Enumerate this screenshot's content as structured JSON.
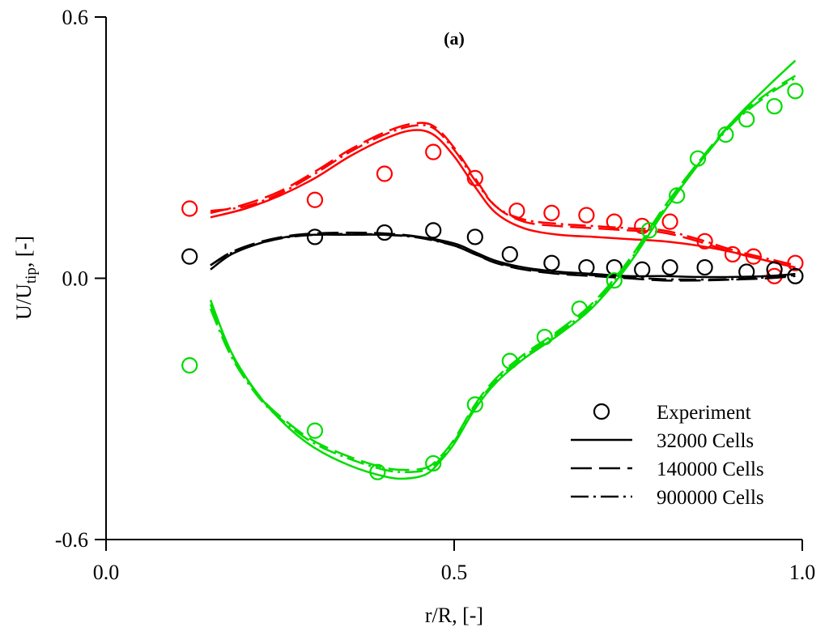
{
  "chart_data": {
    "type": "line",
    "panel_label": "(a)",
    "xlabel": "r/R, [-]",
    "ylabel_main": "U/U",
    "ylabel_sub": "tip",
    "ylabel_tail": ", [-]",
    "xlim": [
      0.0,
      1.0
    ],
    "ylim": [
      -0.6,
      0.6
    ],
    "x_ticks": [
      {
        "value": 0.0,
        "label": "0.0"
      },
      {
        "value": 0.5,
        "label": "0.5"
      },
      {
        "value": 1.0,
        "label": "1.0"
      }
    ],
    "y_ticks": [
      {
        "value": 0.6,
        "label": "0.6"
      },
      {
        "value": 0.0,
        "label": "0.0"
      },
      {
        "value": -0.6,
        "label": "-0.6"
      }
    ],
    "grid": false,
    "legend_position": "bottom-right",
    "legend": [
      {
        "label": "Experiment",
        "style": "circle"
      },
      {
        "label": "32000 Cells",
        "style": "solid"
      },
      {
        "label": "140000 Cells",
        "style": "dash"
      },
      {
        "label": "900000 Cells",
        "style": "dashdot"
      }
    ],
    "components": [
      {
        "color": "#ff0000",
        "experiment": [
          [
            0.12,
            0.16
          ],
          [
            0.3,
            0.18
          ],
          [
            0.4,
            0.24
          ],
          [
            0.47,
            0.29
          ],
          [
            0.53,
            0.23
          ],
          [
            0.59,
            0.155
          ],
          [
            0.64,
            0.15
          ],
          [
            0.69,
            0.145
          ],
          [
            0.73,
            0.13
          ],
          [
            0.77,
            0.12
          ],
          [
            0.81,
            0.13
          ],
          [
            0.86,
            0.085
          ],
          [
            0.9,
            0.055
          ],
          [
            0.93,
            0.05
          ],
          [
            0.96,
            0.005
          ],
          [
            0.99,
            0.035
          ]
        ],
        "series": [
          {
            "style": "solid",
            "points": [
              [
                0.15,
                0.14
              ],
              [
                0.2,
                0.16
              ],
              [
                0.25,
                0.19
              ],
              [
                0.3,
                0.23
              ],
              [
                0.35,
                0.28
              ],
              [
                0.4,
                0.32
              ],
              [
                0.44,
                0.34
              ],
              [
                0.47,
                0.33
              ],
              [
                0.5,
                0.28
              ],
              [
                0.53,
                0.21
              ],
              [
                0.56,
                0.15
              ],
              [
                0.6,
                0.115
              ],
              [
                0.65,
                0.1
              ],
              [
                0.7,
                0.095
              ],
              [
                0.75,
                0.09
              ],
              [
                0.8,
                0.085
              ],
              [
                0.85,
                0.075
              ],
              [
                0.9,
                0.06
              ],
              [
                0.95,
                0.04
              ],
              [
                0.99,
                0.025
              ]
            ]
          },
          {
            "style": "dash",
            "points": [
              [
                0.15,
                0.15
              ],
              [
                0.2,
                0.17
              ],
              [
                0.25,
                0.2
              ],
              [
                0.3,
                0.245
              ],
              [
                0.35,
                0.295
              ],
              [
                0.4,
                0.335
              ],
              [
                0.44,
                0.355
              ],
              [
                0.47,
                0.35
              ],
              [
                0.5,
                0.3
              ],
              [
                0.53,
                0.23
              ],
              [
                0.56,
                0.165
              ],
              [
                0.6,
                0.13
              ],
              [
                0.65,
                0.12
              ],
              [
                0.7,
                0.115
              ],
              [
                0.75,
                0.11
              ],
              [
                0.8,
                0.105
              ],
              [
                0.85,
                0.085
              ],
              [
                0.9,
                0.06
              ],
              [
                0.95,
                0.04
              ],
              [
                0.99,
                0.025
              ]
            ]
          },
          {
            "style": "dashdot",
            "points": [
              [
                0.15,
                0.155
              ],
              [
                0.2,
                0.165
              ],
              [
                0.25,
                0.195
              ],
              [
                0.3,
                0.24
              ],
              [
                0.35,
                0.29
              ],
              [
                0.4,
                0.33
              ],
              [
                0.44,
                0.35
              ],
              [
                0.47,
                0.345
              ],
              [
                0.5,
                0.295
              ],
              [
                0.53,
                0.225
              ],
              [
                0.56,
                0.165
              ],
              [
                0.6,
                0.135
              ],
              [
                0.65,
                0.125
              ],
              [
                0.7,
                0.12
              ],
              [
                0.75,
                0.115
              ],
              [
                0.8,
                0.11
              ],
              [
                0.85,
                0.09
              ],
              [
                0.9,
                0.065
              ],
              [
                0.95,
                0.045
              ],
              [
                0.99,
                0.03
              ]
            ]
          }
        ]
      },
      {
        "color": "#000000",
        "experiment": [
          [
            0.12,
            0.05
          ],
          [
            0.3,
            0.095
          ],
          [
            0.4,
            0.105
          ],
          [
            0.47,
            0.11
          ],
          [
            0.53,
            0.095
          ],
          [
            0.58,
            0.055
          ],
          [
            0.64,
            0.035
          ],
          [
            0.69,
            0.025
          ],
          [
            0.73,
            0.025
          ],
          [
            0.77,
            0.02
          ],
          [
            0.81,
            0.025
          ],
          [
            0.86,
            0.025
          ],
          [
            0.92,
            0.015
          ],
          [
            0.96,
            0.02
          ],
          [
            0.99,
            0.005
          ]
        ],
        "series": [
          {
            "style": "solid",
            "points": [
              [
                0.15,
                0.02
              ],
              [
                0.18,
                0.055
              ],
              [
                0.22,
                0.08
              ],
              [
                0.26,
                0.095
              ],
              [
                0.3,
                0.1
              ],
              [
                0.35,
                0.1
              ],
              [
                0.4,
                0.1
              ],
              [
                0.45,
                0.095
              ],
              [
                0.5,
                0.08
              ],
              [
                0.53,
                0.06
              ],
              [
                0.56,
                0.04
              ],
              [
                0.6,
                0.025
              ],
              [
                0.65,
                0.015
              ],
              [
                0.7,
                0.01
              ],
              [
                0.75,
                0.005
              ],
              [
                0.8,
                0.005
              ],
              [
                0.85,
                0.003
              ],
              [
                0.9,
                0.003
              ],
              [
                0.95,
                0.005
              ],
              [
                0.99,
                0.01
              ]
            ]
          },
          {
            "style": "dash",
            "points": [
              [
                0.15,
                0.03
              ],
              [
                0.18,
                0.06
              ],
              [
                0.22,
                0.083
              ],
              [
                0.26,
                0.097
              ],
              [
                0.3,
                0.103
              ],
              [
                0.35,
                0.105
              ],
              [
                0.4,
                0.103
              ],
              [
                0.45,
                0.095
              ],
              [
                0.5,
                0.075
              ],
              [
                0.53,
                0.055
              ],
              [
                0.56,
                0.035
              ],
              [
                0.6,
                0.02
              ],
              [
                0.65,
                0.01
              ],
              [
                0.7,
                0.005
              ],
              [
                0.75,
                0.0
              ],
              [
                0.8,
                -0.005
              ],
              [
                0.85,
                -0.005
              ],
              [
                0.9,
                -0.003
              ],
              [
                0.95,
                0.0
              ],
              [
                0.99,
                0.005
              ]
            ]
          },
          {
            "style": "dashdot",
            "points": [
              [
                0.15,
                0.03
              ],
              [
                0.18,
                0.058
              ],
              [
                0.22,
                0.08
              ],
              [
                0.26,
                0.094
              ],
              [
                0.3,
                0.1
              ],
              [
                0.35,
                0.102
              ],
              [
                0.4,
                0.1
              ],
              [
                0.45,
                0.093
              ],
              [
                0.5,
                0.075
              ],
              [
                0.53,
                0.055
              ],
              [
                0.56,
                0.037
              ],
              [
                0.6,
                0.022
              ],
              [
                0.65,
                0.012
              ],
              [
                0.7,
                0.007
              ],
              [
                0.75,
                0.002
              ],
              [
                0.8,
                -0.002
              ],
              [
                0.85,
                -0.003
              ],
              [
                0.9,
                -0.002
              ],
              [
                0.95,
                0.002
              ],
              [
                0.99,
                0.007
              ]
            ]
          }
        ]
      },
      {
        "color": "#00dd00",
        "experiment": [
          [
            0.12,
            -0.2
          ],
          [
            0.3,
            -0.35
          ],
          [
            0.39,
            -0.445
          ],
          [
            0.47,
            -0.425
          ],
          [
            0.53,
            -0.29
          ],
          [
            0.58,
            -0.19
          ],
          [
            0.63,
            -0.135
          ],
          [
            0.68,
            -0.07
          ],
          [
            0.73,
            -0.005
          ],
          [
            0.78,
            0.11
          ],
          [
            0.82,
            0.19
          ],
          [
            0.85,
            0.275
          ],
          [
            0.89,
            0.33
          ],
          [
            0.92,
            0.365
          ],
          [
            0.96,
            0.395
          ],
          [
            0.99,
            0.43
          ]
        ],
        "series": [
          {
            "style": "solid",
            "points": [
              [
                0.15,
                -0.05
              ],
              [
                0.18,
                -0.17
              ],
              [
                0.22,
                -0.27
              ],
              [
                0.26,
                -0.34
              ],
              [
                0.3,
                -0.39
              ],
              [
                0.35,
                -0.43
              ],
              [
                0.4,
                -0.455
              ],
              [
                0.43,
                -0.46
              ],
              [
                0.46,
                -0.45
              ],
              [
                0.48,
                -0.42
              ],
              [
                0.5,
                -0.38
              ],
              [
                0.53,
                -0.3
              ],
              [
                0.56,
                -0.24
              ],
              [
                0.6,
                -0.185
              ],
              [
                0.65,
                -0.13
              ],
              [
                0.7,
                -0.065
              ],
              [
                0.75,
                0.03
              ],
              [
                0.8,
                0.15
              ],
              [
                0.85,
                0.26
              ],
              [
                0.9,
                0.36
              ],
              [
                0.95,
                0.44
              ],
              [
                0.99,
                0.5
              ]
            ]
          },
          {
            "style": "dash",
            "points": [
              [
                0.15,
                -0.06
              ],
              [
                0.18,
                -0.175
              ],
              [
                0.22,
                -0.27
              ],
              [
                0.26,
                -0.33
              ],
              [
                0.3,
                -0.375
              ],
              [
                0.35,
                -0.41
              ],
              [
                0.4,
                -0.435
              ],
              [
                0.43,
                -0.44
              ],
              [
                0.46,
                -0.435
              ],
              [
                0.48,
                -0.41
              ],
              [
                0.5,
                -0.37
              ],
              [
                0.53,
                -0.29
              ],
              [
                0.56,
                -0.23
              ],
              [
                0.6,
                -0.175
              ],
              [
                0.65,
                -0.12
              ],
              [
                0.7,
                -0.055
              ],
              [
                0.75,
                0.04
              ],
              [
                0.8,
                0.16
              ],
              [
                0.85,
                0.265
              ],
              [
                0.9,
                0.36
              ],
              [
                0.95,
                0.425
              ],
              [
                0.99,
                0.465
              ]
            ]
          },
          {
            "style": "dashdot",
            "points": [
              [
                0.15,
                -0.07
              ],
              [
                0.18,
                -0.18
              ],
              [
                0.22,
                -0.275
              ],
              [
                0.26,
                -0.335
              ],
              [
                0.3,
                -0.38
              ],
              [
                0.35,
                -0.415
              ],
              [
                0.4,
                -0.44
              ],
              [
                0.43,
                -0.445
              ],
              [
                0.46,
                -0.44
              ],
              [
                0.48,
                -0.415
              ],
              [
                0.5,
                -0.375
              ],
              [
                0.53,
                -0.295
              ],
              [
                0.56,
                -0.235
              ],
              [
                0.6,
                -0.18
              ],
              [
                0.65,
                -0.125
              ],
              [
                0.7,
                -0.06
              ],
              [
                0.75,
                0.035
              ],
              [
                0.8,
                0.155
              ],
              [
                0.85,
                0.26
              ],
              [
                0.9,
                0.355
              ],
              [
                0.95,
                0.42
              ],
              [
                0.99,
                0.46
              ]
            ]
          }
        ]
      }
    ]
  }
}
